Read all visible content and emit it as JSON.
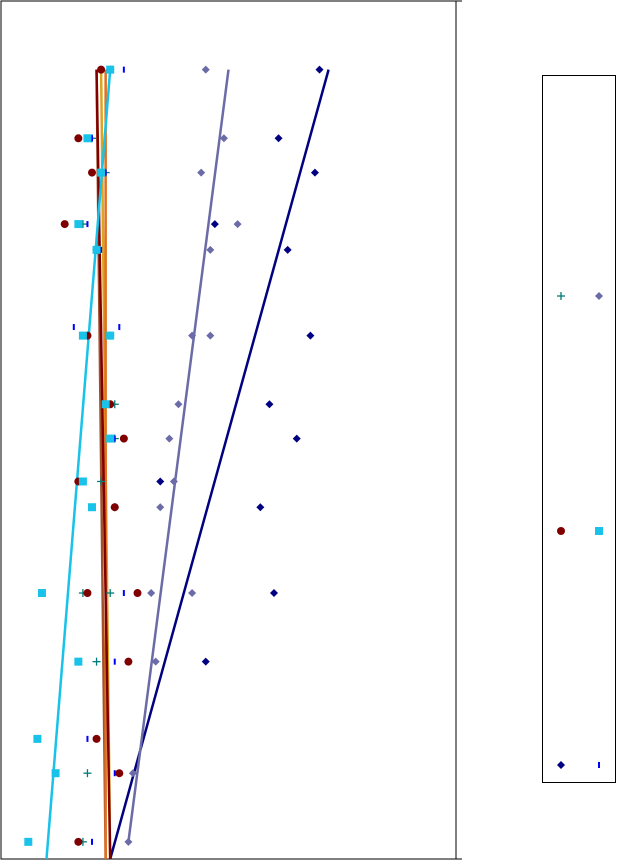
{
  "chart_data": {
    "type": "scatter",
    "title": "",
    "xlabel": "",
    "ylabel": "",
    "xlim": [
      0,
      100
    ],
    "ylim": [
      0,
      100
    ],
    "grid": false,
    "legend_placement": "right",
    "series": [
      {
        "key": "navy",
        "marker": "diamond",
        "color": "#000080",
        "points": [
          [
            70,
            92
          ],
          [
            61,
            84
          ],
          [
            69,
            80
          ],
          [
            47,
            74
          ],
          [
            63,
            71
          ],
          [
            68,
            61
          ],
          [
            59,
            53
          ],
          [
            65,
            49
          ],
          [
            35,
            44
          ],
          [
            57,
            41
          ],
          [
            60,
            31
          ],
          [
            45,
            23
          ]
        ],
        "trend": [
          [
            72,
            92
          ],
          [
            24,
            0
          ]
        ]
      },
      {
        "key": "slate",
        "marker": "diamond",
        "color": "#6B6BA8",
        "points": [
          [
            45,
            92
          ],
          [
            49,
            84
          ],
          [
            44,
            80
          ],
          [
            52,
            74
          ],
          [
            46,
            71
          ],
          [
            42,
            61
          ],
          [
            46,
            61
          ],
          [
            39,
            53
          ],
          [
            37,
            49
          ],
          [
            38,
            44
          ],
          [
            35,
            41
          ],
          [
            42,
            31
          ],
          [
            33,
            31
          ],
          [
            34,
            23
          ],
          [
            29,
            10
          ],
          [
            28,
            2
          ]
        ],
        "trend": [
          [
            50,
            92
          ],
          [
            28,
            2
          ]
        ]
      },
      {
        "key": "teal-plus",
        "marker": "plus",
        "color": "#007B7B",
        "points": [
          [
            24,
            92
          ],
          [
            20,
            84
          ],
          [
            23,
            80
          ],
          [
            18,
            74
          ],
          [
            21,
            71
          ],
          [
            24,
            61
          ],
          [
            25,
            53
          ],
          [
            25,
            49
          ],
          [
            22,
            44
          ],
          [
            25,
            41
          ],
          [
            18,
            31
          ],
          [
            24,
            31
          ],
          [
            21,
            23
          ],
          [
            19,
            10
          ],
          [
            18,
            2
          ]
        ],
        "trend": []
      },
      {
        "key": "blue-dash",
        "marker": "dash",
        "color": "#0000FF",
        "points": [
          [
            27,
            92
          ],
          [
            20,
            84
          ],
          [
            23,
            80
          ],
          [
            19,
            74
          ],
          [
            22,
            71
          ],
          [
            16,
            62
          ],
          [
            26,
            62
          ],
          [
            24,
            53
          ],
          [
            25,
            49
          ],
          [
            18,
            44
          ],
          [
            25,
            41
          ],
          [
            27,
            31
          ],
          [
            25,
            23
          ],
          [
            19,
            14
          ],
          [
            25,
            10
          ],
          [
            20,
            2
          ]
        ],
        "trend": []
      },
      {
        "key": "maroon",
        "marker": "circle",
        "color": "#800000",
        "points": [
          [
            22,
            92
          ],
          [
            17,
            84
          ],
          [
            20,
            80
          ],
          [
            14,
            74
          ],
          [
            21,
            71
          ],
          [
            19,
            61
          ],
          [
            24,
            53
          ],
          [
            27,
            49
          ],
          [
            17,
            44
          ],
          [
            25,
            41
          ],
          [
            30,
            31
          ],
          [
            19,
            31
          ],
          [
            28,
            23
          ],
          [
            21,
            14
          ],
          [
            26,
            10
          ],
          [
            17,
            2
          ]
        ],
        "trend": [
          [
            21,
            92
          ],
          [
            24,
            0
          ]
        ]
      },
      {
        "key": "cyan",
        "marker": "square",
        "color": "#19C2E8",
        "points": [
          [
            24,
            92
          ],
          [
            19,
            84
          ],
          [
            22,
            80
          ],
          [
            17,
            74
          ],
          [
            21,
            71
          ],
          [
            18,
            61
          ],
          [
            24,
            61
          ],
          [
            23,
            53
          ],
          [
            24,
            49
          ],
          [
            18,
            44
          ],
          [
            20,
            41
          ],
          [
            9,
            31
          ],
          [
            17,
            23
          ],
          [
            8,
            14
          ],
          [
            12,
            10
          ],
          [
            6,
            2
          ]
        ],
        "trend": [
          [
            24,
            92
          ],
          [
            10,
            0
          ]
        ]
      }
    ],
    "extra_trend_lines": [
      {
        "color": "#A0522D",
        "from": [
          21,
          92
        ],
        "to": [
          23,
          0
        ]
      },
      {
        "color": "#DAA520",
        "from": [
          22,
          92
        ],
        "to": [
          24,
          0
        ]
      },
      {
        "color": "#E07020",
        "from": [
          23,
          92
        ],
        "to": [
          23,
          0
        ]
      }
    ],
    "legend": {
      "entries": [
        {
          "marker": "plus",
          "color": "#007B7B",
          "label": ""
        },
        {
          "marker": "diamond",
          "color": "#6B6BA8",
          "label": ""
        },
        {
          "marker": "circle",
          "color": "#800000",
          "label": ""
        },
        {
          "marker": "square",
          "color": "#19C2E8",
          "label": ""
        },
        {
          "marker": "diamond",
          "color": "#000080",
          "label": ""
        },
        {
          "marker": "dash",
          "color": "#0000FF",
          "label": ""
        }
      ]
    }
  }
}
